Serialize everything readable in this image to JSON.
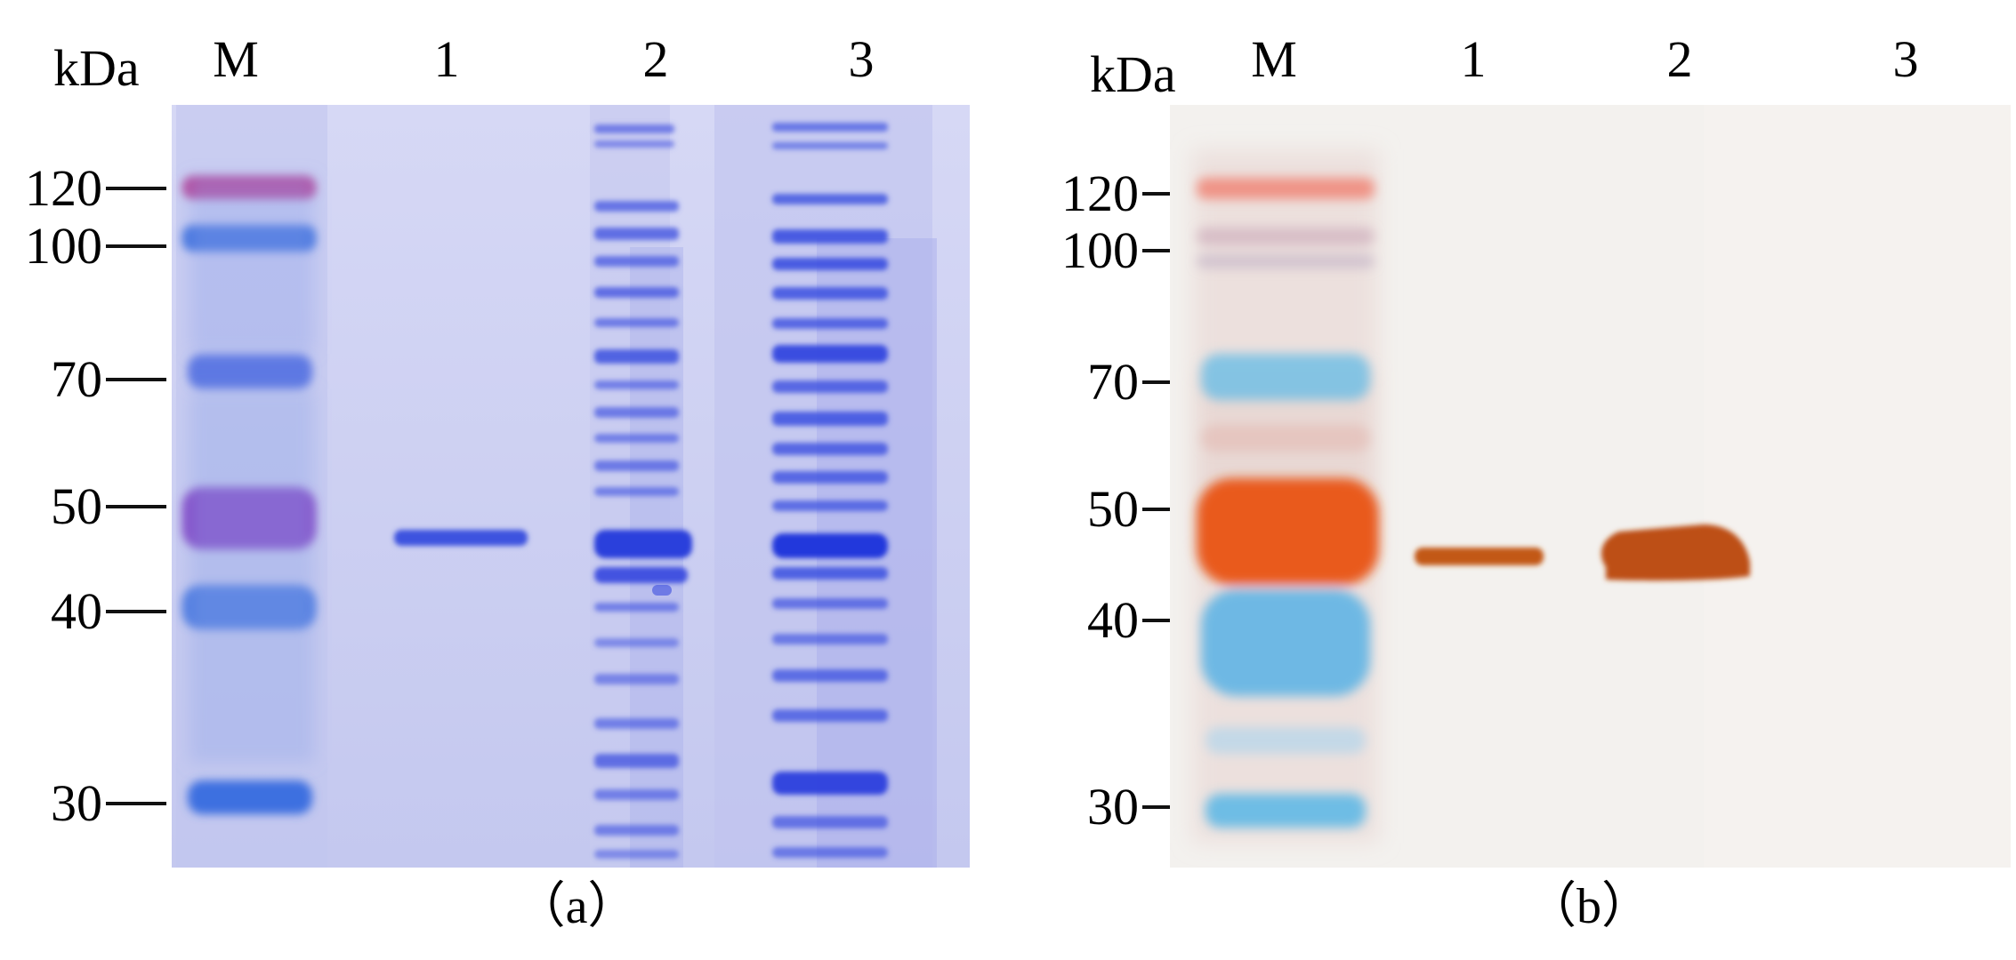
{
  "figure": {
    "panels": [
      {
        "id": "a",
        "caption": "（a）",
        "unit_label": "kDa",
        "lane_labels": [
          "M",
          "1",
          "2",
          "3"
        ],
        "marker_values": [
          "120",
          "100",
          "70",
          "50",
          "40",
          "30"
        ],
        "type": "SDS-PAGE gel (Coomassie stain)",
        "colors": {
          "background": "#c9cdf0",
          "band": "#3e4fe0",
          "marker_top": "#b3479e",
          "marker_mid": "#7f43c8"
        }
      },
      {
        "id": "b",
        "caption": "（b）",
        "unit_label": "kDa",
        "lane_labels": [
          "M",
          "1",
          "2",
          "3"
        ],
        "marker_values": [
          "120",
          "100",
          "70",
          "50",
          "40",
          "30"
        ],
        "type": "Western blot membrane",
        "colors": {
          "background": "#f4f1ee",
          "band": "#c4561a",
          "marker_50": "#e65a1f",
          "marker_blue": "#4db0e0"
        }
      }
    ]
  }
}
